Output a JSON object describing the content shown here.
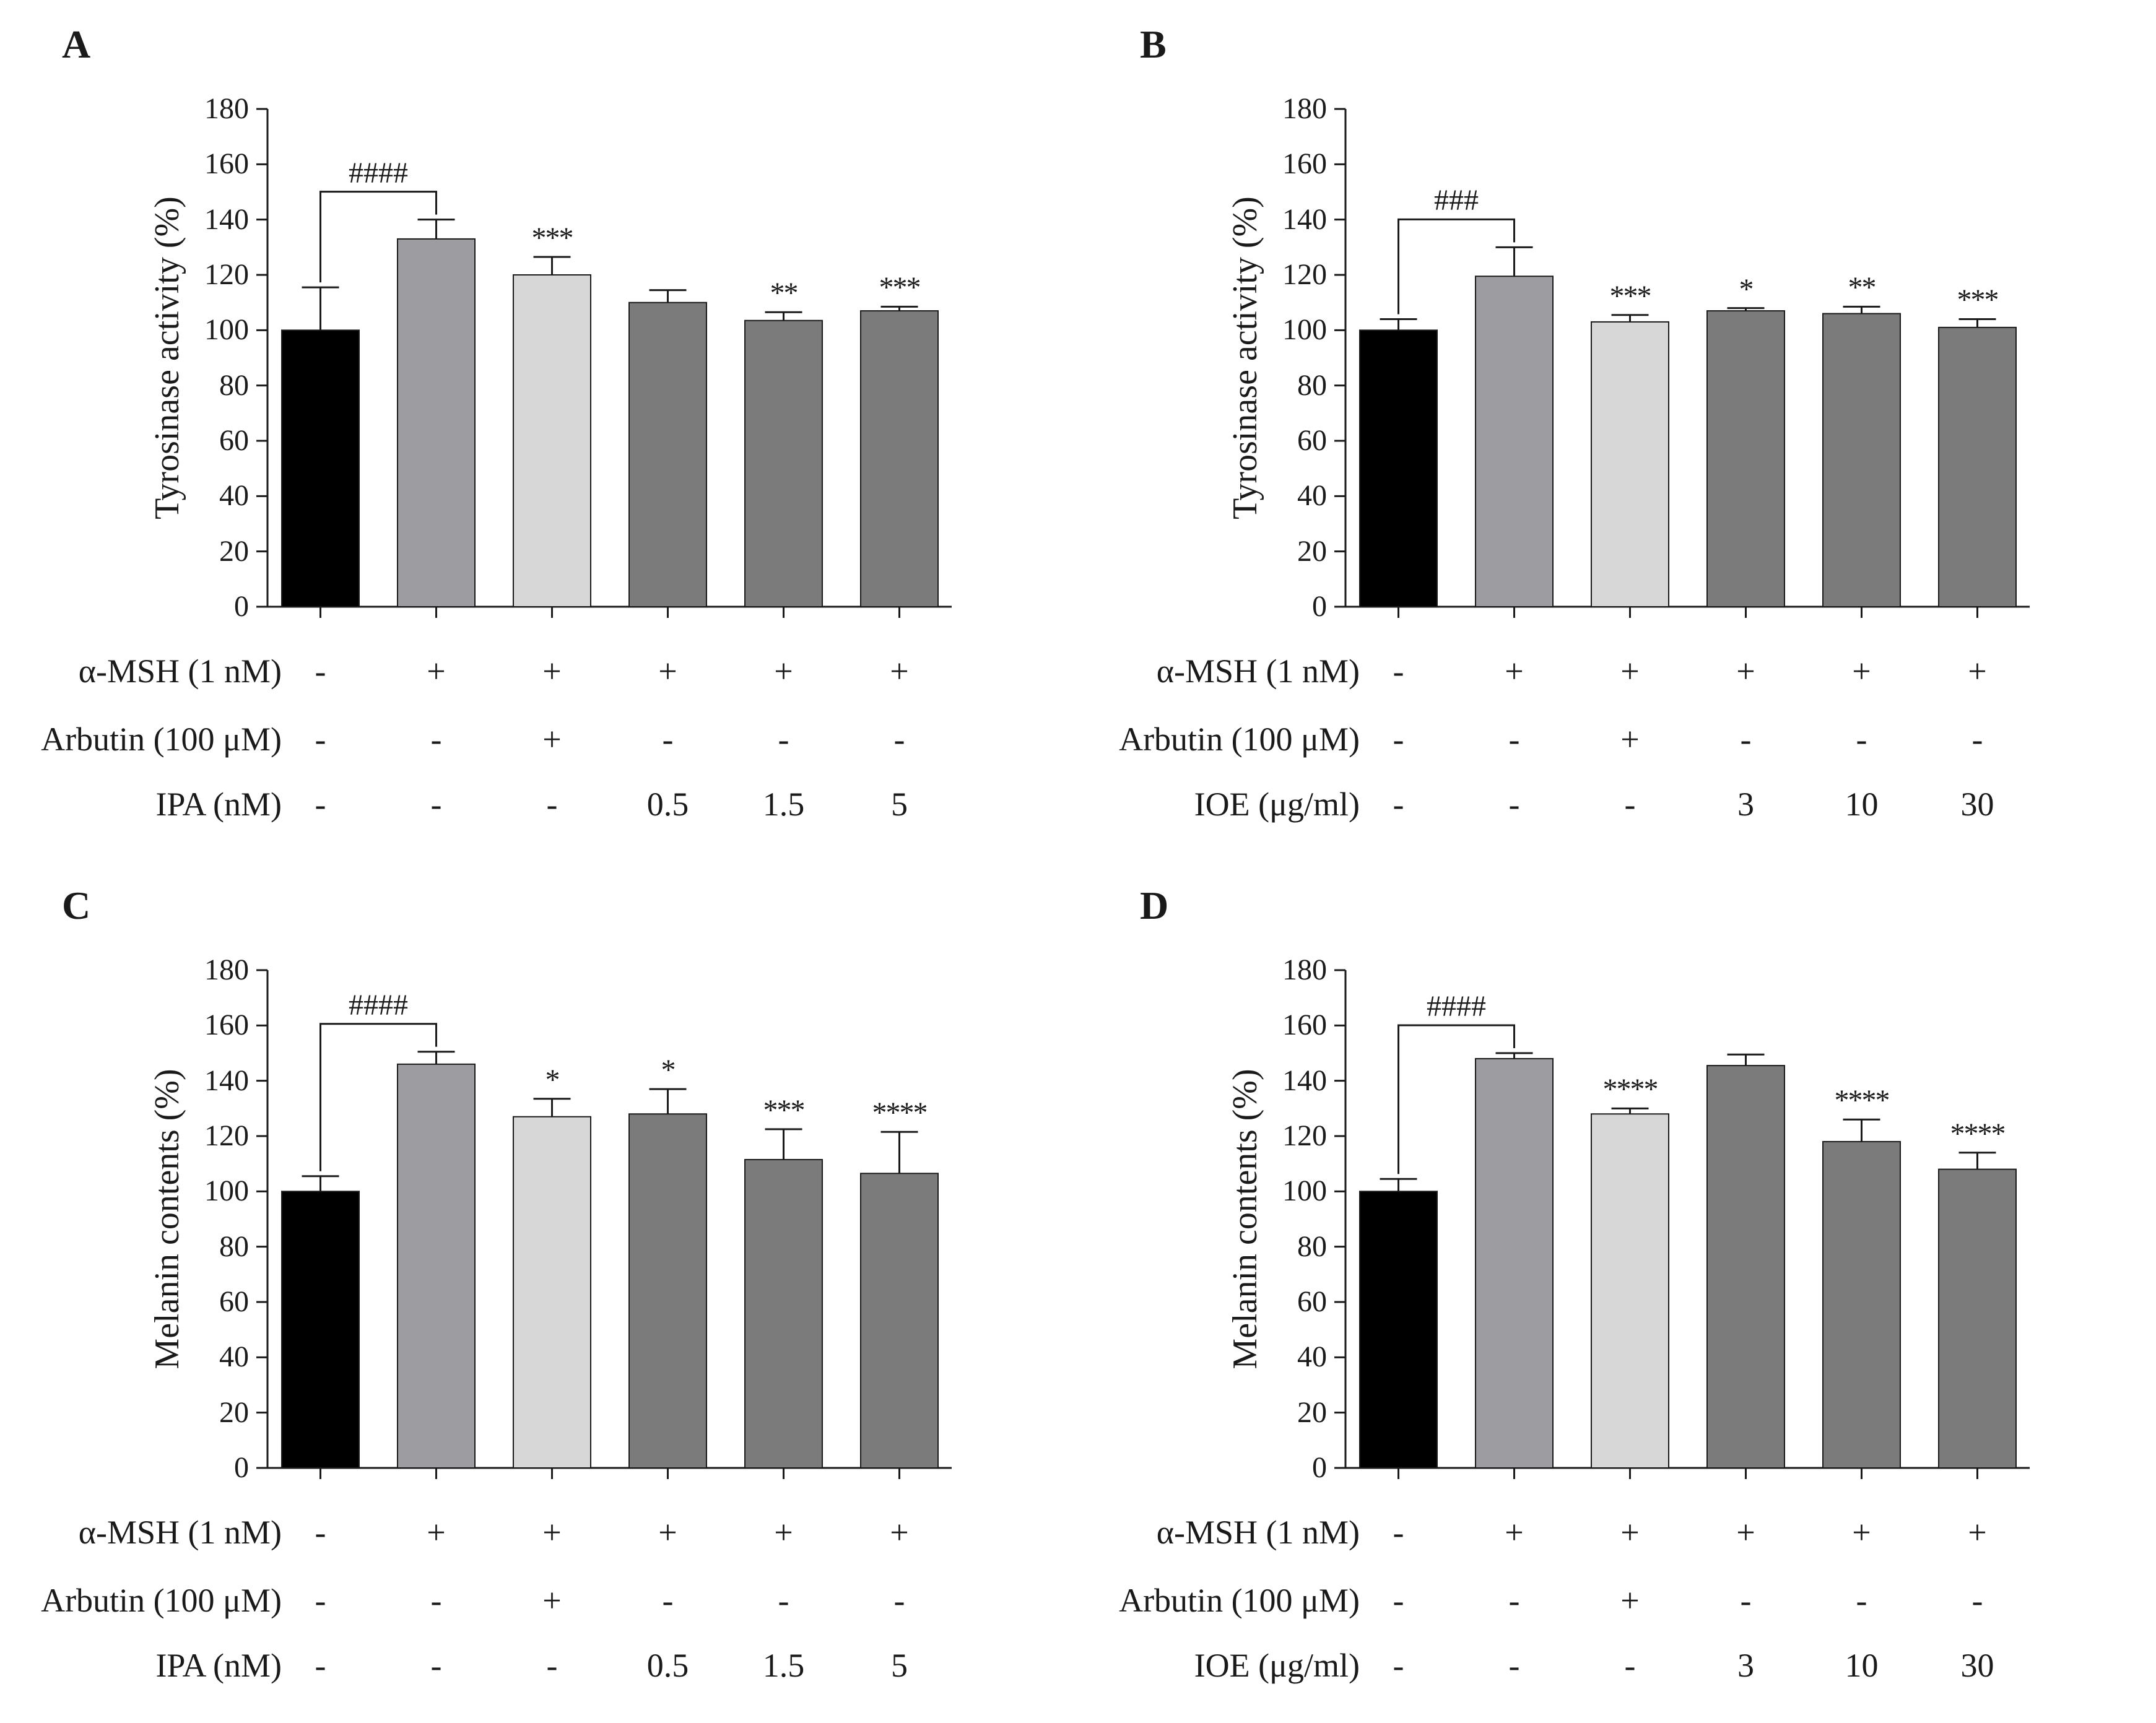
{
  "colors": {
    "control": "#000000",
    "msh": "#9c9ca1",
    "arbutin": "#d7d7d7",
    "treat": "#7b7b7b",
    "axis": "#1a1a1a"
  },
  "chart_data": [
    {
      "type": "bar",
      "panel": "A",
      "ylabel": "Tyrosinase activity (%)",
      "ylim": [
        0,
        180
      ],
      "yticks": [
        "0",
        "20",
        "40",
        "60",
        "80",
        "100",
        "120",
        "140",
        "160",
        "180"
      ],
      "values": [
        100,
        133,
        120,
        110,
        103.5,
        107
      ],
      "errors": [
        15.5,
        7,
        6.5,
        4.5,
        3,
        1.5
      ],
      "bar_colors": [
        "control",
        "msh",
        "arbutin",
        "treat",
        "treat",
        "treat"
      ],
      "significance": [
        "",
        "",
        "***",
        "",
        "**",
        "***"
      ],
      "bracket": {
        "label": "####",
        "from": 0,
        "to": 1
      },
      "rows": [
        {
          "label": "α-MSH (1 nM)",
          "cells": [
            "-",
            "+",
            "+",
            "+",
            "+",
            "+"
          ]
        },
        {
          "label": "Arbutin (100 μM)",
          "cells": [
            "-",
            "-",
            "+",
            "-",
            "-",
            "-"
          ]
        },
        {
          "label": "IPA (nM)",
          "cells": [
            "-",
            "-",
            "-",
            "0.5",
            "1.5",
            "5"
          ]
        }
      ]
    },
    {
      "type": "bar",
      "panel": "B",
      "ylabel": "Tyrosinase activity (%)",
      "ylim": [
        0,
        180
      ],
      "yticks": [
        "0",
        "20",
        "40",
        "60",
        "80",
        "100",
        "120",
        "140",
        "160",
        "180"
      ],
      "values": [
        100,
        119.5,
        103,
        107,
        106,
        101
      ],
      "errors": [
        4,
        10.5,
        2.5,
        1,
        2.5,
        3
      ],
      "bar_colors": [
        "control",
        "msh",
        "arbutin",
        "treat",
        "treat",
        "treat"
      ],
      "significance": [
        "",
        "",
        "***",
        "*",
        "**",
        "***"
      ],
      "bracket": {
        "label": "###",
        "from": 0,
        "to": 1
      },
      "rows": [
        {
          "label": "α-MSH (1 nM)",
          "cells": [
            "-",
            "+",
            "+",
            "+",
            "+",
            "+"
          ]
        },
        {
          "label": "Arbutin (100 μM)",
          "cells": [
            "-",
            "-",
            "+",
            "-",
            "-",
            "-"
          ]
        },
        {
          "label": "IOE (μg/ml)",
          "cells": [
            "-",
            "-",
            "-",
            "3",
            "10",
            "30"
          ]
        }
      ]
    },
    {
      "type": "bar",
      "panel": "C",
      "ylabel": "Melanin contents (%)",
      "ylim": [
        0,
        180
      ],
      "yticks": [
        "0",
        "20",
        "40",
        "60",
        "80",
        "100",
        "120",
        "140",
        "160",
        "180"
      ],
      "values": [
        100,
        146,
        127,
        128,
        111.5,
        106.5
      ],
      "errors": [
        5.5,
        4.5,
        6.5,
        9,
        11,
        15
      ],
      "bar_colors": [
        "control",
        "msh",
        "arbutin",
        "treat",
        "treat",
        "treat"
      ],
      "significance": [
        "",
        "",
        "*",
        "*",
        "***",
        "****"
      ],
      "bracket": {
        "label": "####",
        "from": 0,
        "to": 1
      },
      "rows": [
        {
          "label": "α-MSH (1 nM)",
          "cells": [
            "-",
            "+",
            "+",
            "+",
            "+",
            "+"
          ]
        },
        {
          "label": "Arbutin (100 μM)",
          "cells": [
            "-",
            "-",
            "+",
            "-",
            "-",
            "-"
          ]
        },
        {
          "label": "IPA (nM)",
          "cells": [
            "-",
            "-",
            "-",
            "0.5",
            "1.5",
            "5"
          ]
        }
      ]
    },
    {
      "type": "bar",
      "panel": "D",
      "ylabel": "Melanin contents (%)",
      "ylim": [
        0,
        180
      ],
      "yticks": [
        "0",
        "20",
        "40",
        "60",
        "80",
        "100",
        "120",
        "140",
        "160",
        "180"
      ],
      "values": [
        100,
        148,
        128,
        145.5,
        118,
        108
      ],
      "errors": [
        4.5,
        2,
        2,
        4,
        8,
        6
      ],
      "bar_colors": [
        "control",
        "msh",
        "arbutin",
        "treat",
        "treat",
        "treat"
      ],
      "significance": [
        "",
        "",
        "****",
        "",
        "****",
        "****"
      ],
      "bracket": {
        "label": "####",
        "from": 0,
        "to": 1
      },
      "rows": [
        {
          "label": "α-MSH (1 nM)",
          "cells": [
            "-",
            "+",
            "+",
            "+",
            "+",
            "+"
          ]
        },
        {
          "label": "Arbutin (100 μM)",
          "cells": [
            "-",
            "-",
            "+",
            "-",
            "-",
            "-"
          ]
        },
        {
          "label": "IOE (μg/ml)",
          "cells": [
            "-",
            "-",
            "-",
            "3",
            "10",
            "30"
          ]
        }
      ]
    }
  ]
}
